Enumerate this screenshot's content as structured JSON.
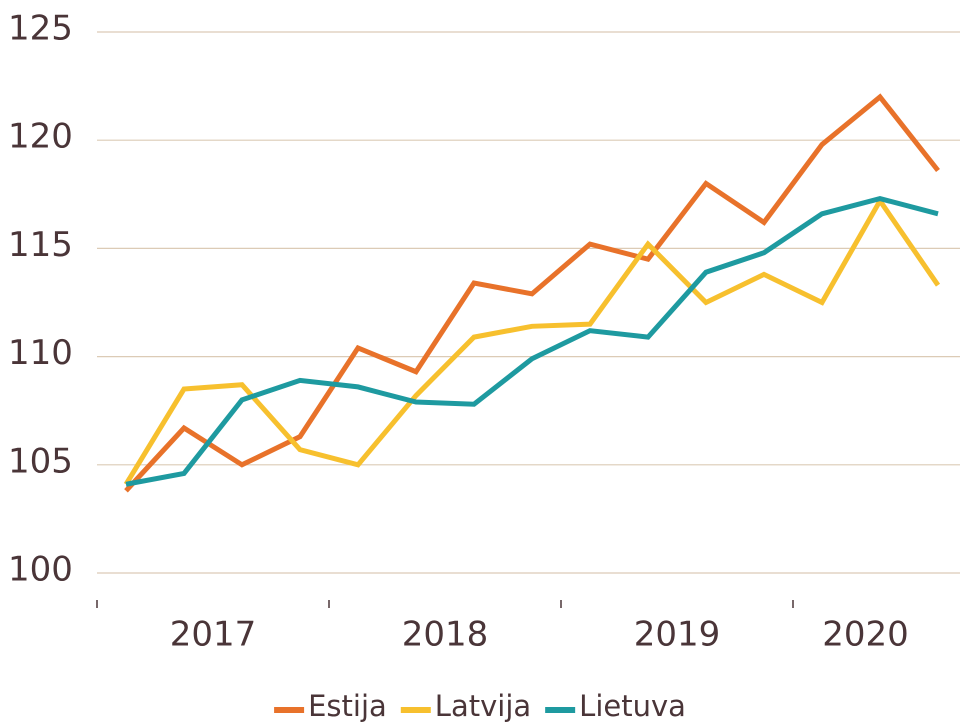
{
  "chart_data": {
    "type": "line",
    "categories": [
      "2017",
      null,
      null,
      null,
      "2018",
      null,
      null,
      null,
      "2019",
      null,
      null,
      null,
      "2020",
      null,
      null
    ],
    "series": [
      {
        "name": "Estija",
        "color": "#e8722a",
        "values": [
          103.8,
          106.7,
          105.0,
          106.3,
          110.4,
          109.3,
          113.4,
          112.9,
          115.2,
          114.5,
          118.0,
          116.2,
          119.8,
          122.0,
          118.6
        ]
      },
      {
        "name": "Latvija",
        "color": "#f7c02e",
        "values": [
          104.1,
          108.5,
          108.7,
          105.7,
          105.0,
          108.2,
          110.9,
          111.4,
          111.5,
          115.2,
          112.5,
          113.8,
          112.5,
          117.2,
          113.3
        ]
      },
      {
        "name": "Lietuva",
        "color": "#1e9aa0",
        "values": [
          104.1,
          104.6,
          108.0,
          108.9,
          108.6,
          107.9,
          107.8,
          109.9,
          111.2,
          110.9,
          113.9,
          114.8,
          116.6,
          117.3,
          116.6
        ]
      }
    ],
    "ylim": [
      100,
      125
    ],
    "yticks": [
      100,
      105,
      110,
      115,
      120,
      125
    ],
    "grid": true,
    "legend": "bottom"
  }
}
